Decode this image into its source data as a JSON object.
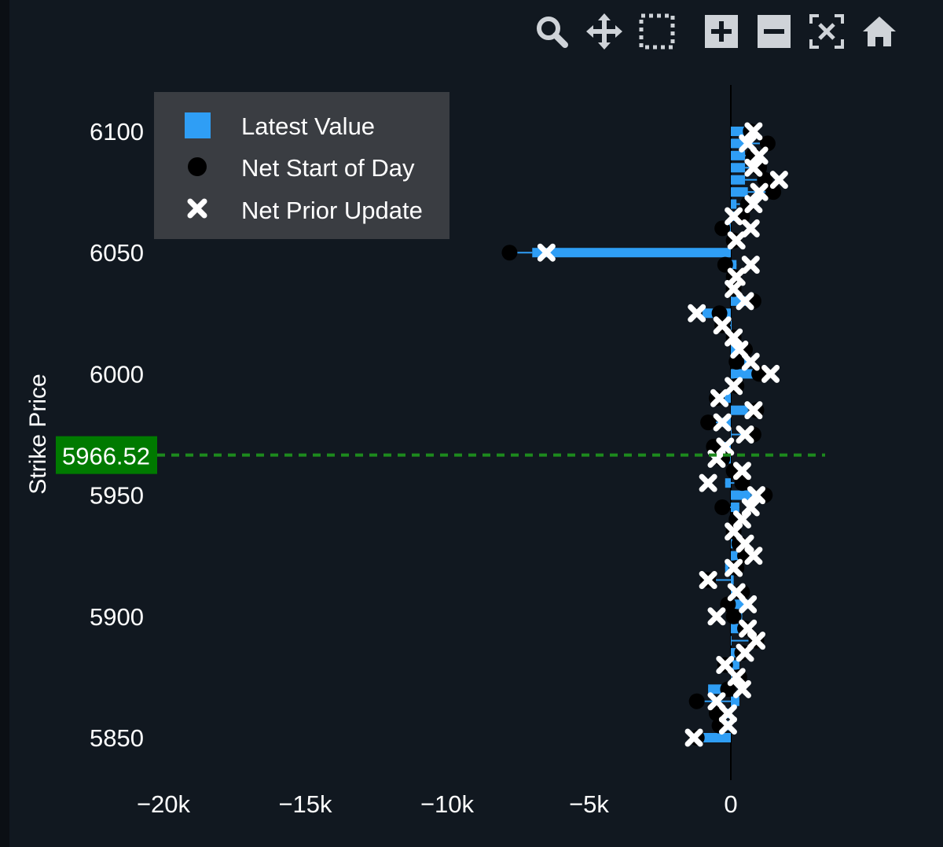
{
  "toolbar": {
    "tools": [
      {
        "name": "zoom-icon"
      },
      {
        "name": "pan-icon"
      },
      {
        "name": "box-select-icon"
      },
      {
        "name": "zoom-in-icon"
      },
      {
        "name": "zoom-out-icon"
      },
      {
        "name": "autoscale-icon"
      },
      {
        "name": "reset-axes-icon"
      }
    ]
  },
  "colors": {
    "background": "#111820",
    "latest_bar": "#2f9ef5",
    "spot_line": "#1d8a1d",
    "spot_label_bg": "#007a00",
    "legend_bg": "#3a3d42"
  },
  "chart_data": {
    "type": "bar",
    "orientation": "horizontal",
    "ylabel": "Strike Price",
    "xlabel": "",
    "x_ticks": [
      -20000,
      -15000,
      -10000,
      -5000,
      0
    ],
    "x_tick_labels": [
      "−20k",
      "−15k",
      "−10k",
      "−5k",
      "0"
    ],
    "y_ticks": [
      5850,
      5900,
      5950,
      6000,
      6050,
      6100
    ],
    "y_tick_labels": [
      "5850",
      "5900",
      "5950",
      "6000",
      "6050",
      "6100"
    ],
    "xlim": [
      -20800,
      4000
    ],
    "ylim": [
      5830,
      6120
    ],
    "legend_position": "top-left",
    "spot_price": {
      "value": 5966.52,
      "label": "5966.52"
    },
    "series_names": [
      "Latest Value",
      "Net Start of Day",
      "Net Prior Update"
    ],
    "strikes": [
      5850,
      5855,
      5860,
      5865,
      5870,
      5875,
      5880,
      5885,
      5890,
      5895,
      5900,
      5905,
      5910,
      5915,
      5920,
      5925,
      5930,
      5935,
      5940,
      5945,
      5950,
      5955,
      5960,
      5965,
      5970,
      5975,
      5980,
      5985,
      5990,
      5995,
      6000,
      6005,
      6010,
      6015,
      6020,
      6025,
      6030,
      6035,
      6040,
      6045,
      6050,
      6055,
      6060,
      6065,
      6070,
      6075,
      6080,
      6085,
      6090,
      6095,
      6100
    ],
    "latest_value": [
      -1000,
      -300,
      -200,
      300,
      -800,
      500,
      300,
      200,
      0,
      500,
      400,
      600,
      300,
      100,
      -200,
      500,
      400,
      200,
      100,
      300,
      700,
      -200,
      300,
      -500,
      -500,
      0,
      -300,
      600,
      -300,
      100,
      1000,
      600,
      300,
      200,
      0,
      -1000,
      600,
      300,
      0,
      200,
      -7000,
      200,
      -200,
      400,
      200,
      600,
      500,
      500,
      500,
      600,
      500
    ],
    "net_start_of_day": [
      -1200,
      -400,
      -500,
      -1200,
      -100,
      300,
      -200,
      400,
      900,
      500,
      100,
      -100,
      400,
      -800,
      200,
      500,
      300,
      100,
      200,
      -300,
      1200,
      400,
      100,
      -300,
      -600,
      800,
      -800,
      900,
      -500,
      200,
      1000,
      200,
      500,
      100,
      -300,
      -400,
      800,
      100,
      100,
      -200,
      -7800,
      100,
      -300,
      400,
      600,
      1500,
      1200,
      1000,
      800,
      1300,
      700
    ],
    "net_prior_update": [
      -1300,
      -100,
      -100,
      -500,
      400,
      200,
      -200,
      500,
      900,
      600,
      -500,
      600,
      200,
      -800,
      100,
      800,
      500,
      100,
      400,
      700,
      900,
      -800,
      400,
      -500,
      -200,
      500,
      -300,
      800,
      -400,
      100,
      1400,
      700,
      300,
      100,
      -300,
      -1200,
      500,
      100,
      200,
      700,
      -6500,
      200,
      700,
      100,
      800,
      1000,
      1700,
      800,
      1000,
      600,
      800
    ]
  }
}
